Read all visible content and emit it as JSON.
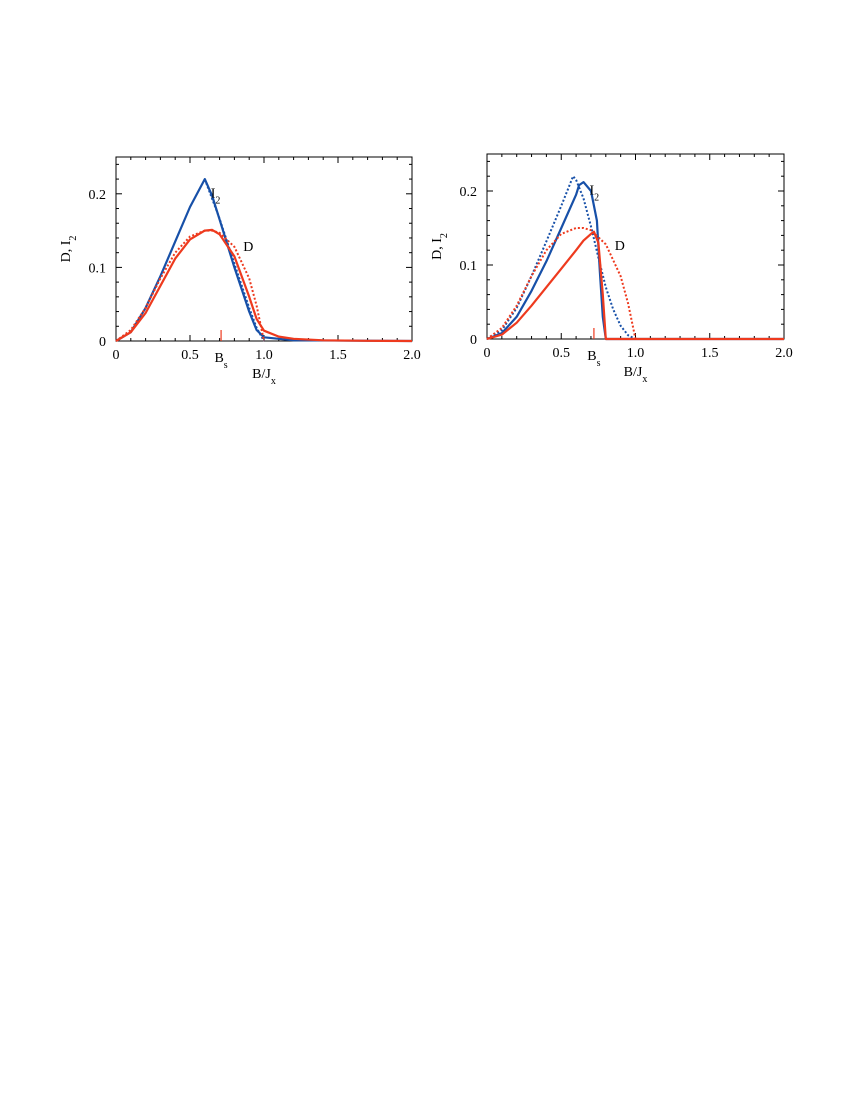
{
  "colors": {
    "D": "#ee3a1e",
    "I2": "#1750a8"
  },
  "chart_data": [
    {
      "type": "line",
      "xlabel": "B/J",
      "xlabel_sub": "x",
      "ylabel": "D, I",
      "ylabel_sub": "2",
      "xlim": [
        0,
        2.0
      ],
      "ylim": [
        0,
        0.25
      ],
      "x_ticks": [
        "0",
        "0.5",
        "1.0",
        "1.5",
        "2.0"
      ],
      "y_ticks": [
        "0",
        "0.1",
        "0.2"
      ],
      "marker": {
        "label": "B",
        "label_sub": "s",
        "x": 0.71
      },
      "series": [
        {
          "label": "I2",
          "style": "solid",
          "color_key": "I2",
          "x": [
            0,
            0.1,
            0.2,
            0.3,
            0.4,
            0.5,
            0.6,
            0.65,
            0.7,
            0.8,
            0.9,
            0.95,
            1.0,
            1.2,
            2.0
          ],
          "y": [
            0,
            0.012,
            0.045,
            0.088,
            0.135,
            0.182,
            0.22,
            0.197,
            0.165,
            0.1,
            0.04,
            0.015,
            0.005,
            0.001,
            0
          ]
        },
        {
          "label": "I2 (dotted)",
          "style": "dotted",
          "color_key": "I2",
          "x": [
            0.6,
            0.7,
            0.8,
            0.9,
            0.95,
            1.0
          ],
          "y": [
            0.22,
            0.166,
            0.105,
            0.045,
            0.018,
            0
          ]
        },
        {
          "label": "D",
          "style": "solid",
          "color_key": "D",
          "x": [
            0,
            0.1,
            0.2,
            0.3,
            0.4,
            0.5,
            0.6,
            0.65,
            0.7,
            0.8,
            0.9,
            0.95,
            1.0,
            1.1,
            1.2,
            1.4,
            1.7,
            2.0
          ],
          "y": [
            0,
            0.012,
            0.038,
            0.075,
            0.112,
            0.138,
            0.15,
            0.151,
            0.145,
            0.115,
            0.06,
            0.03,
            0.014,
            0.006,
            0.003,
            0.001,
            0.0003,
            0
          ]
        },
        {
          "label": "D (dotted)",
          "style": "dotted",
          "color_key": "D",
          "x": [
            0,
            0.1,
            0.2,
            0.3,
            0.4,
            0.5,
            0.6,
            0.65,
            0.7,
            0.8,
            0.9,
            0.95,
            1.0
          ],
          "y": [
            0,
            0.015,
            0.045,
            0.085,
            0.12,
            0.142,
            0.15,
            0.15,
            0.147,
            0.128,
            0.085,
            0.048,
            0
          ]
        }
      ],
      "labels": [
        {
          "text": "I",
          "sub": "2",
          "x": 0.64,
          "y": 0.195
        },
        {
          "text": "D",
          "sub": "",
          "x": 0.86,
          "y": 0.122
        }
      ]
    },
    {
      "type": "line",
      "xlabel": "B/J",
      "xlabel_sub": "x",
      "ylabel": "D, I",
      "ylabel_sub": "2",
      "xlim": [
        0,
        2.0
      ],
      "ylim": [
        0,
        0.25
      ],
      "x_ticks": [
        "0",
        "0.5",
        "1.0",
        "1.5",
        "2.0"
      ],
      "y_ticks": [
        "0",
        "0.1",
        "0.2"
      ],
      "marker": {
        "label": "B",
        "label_sub": "s",
        "x": 0.72
      },
      "series": [
        {
          "label": "I2",
          "style": "solid",
          "color_key": "I2",
          "x": [
            0,
            0.1,
            0.2,
            0.3,
            0.4,
            0.5,
            0.6,
            0.62,
            0.65,
            0.7,
            0.74,
            0.76,
            0.78,
            0.8,
            1.0,
            2.0
          ],
          "y": [
            0,
            0.008,
            0.03,
            0.065,
            0.105,
            0.15,
            0.195,
            0.208,
            0.212,
            0.2,
            0.16,
            0.09,
            0.03,
            0,
            0,
            0
          ]
        },
        {
          "label": "I2 (dotted)",
          "style": "dotted",
          "color_key": "I2",
          "x": [
            0,
            0.1,
            0.2,
            0.3,
            0.4,
            0.5,
            0.55,
            0.58,
            0.6,
            0.65,
            0.7,
            0.75,
            0.8,
            0.85,
            0.9,
            0.95,
            1.0
          ],
          "y": [
            0,
            0.012,
            0.042,
            0.085,
            0.132,
            0.18,
            0.205,
            0.22,
            0.215,
            0.19,
            0.152,
            0.11,
            0.07,
            0.04,
            0.018,
            0.005,
            0
          ]
        },
        {
          "label": "D",
          "style": "solid",
          "color_key": "D",
          "x": [
            0,
            0.1,
            0.2,
            0.3,
            0.4,
            0.5,
            0.6,
            0.65,
            0.7,
            0.72,
            0.75,
            0.78,
            0.8,
            1.0,
            2.0
          ],
          "y": [
            0,
            0.006,
            0.022,
            0.045,
            0.07,
            0.095,
            0.12,
            0.133,
            0.142,
            0.145,
            0.13,
            0.06,
            0,
            0,
            0
          ]
        },
        {
          "label": "D (dotted)",
          "style": "dotted",
          "color_key": "D",
          "x": [
            0,
            0.1,
            0.2,
            0.3,
            0.4,
            0.5,
            0.6,
            0.65,
            0.7,
            0.8,
            0.9,
            0.95,
            1.0
          ],
          "y": [
            0,
            0.015,
            0.045,
            0.085,
            0.12,
            0.142,
            0.15,
            0.15,
            0.147,
            0.128,
            0.085,
            0.048,
            0
          ]
        }
      ],
      "labels": [
        {
          "text": "I",
          "sub": "2",
          "x": 0.69,
          "y": 0.195
        },
        {
          "text": "D",
          "sub": "",
          "x": 0.86,
          "y": 0.12
        }
      ]
    }
  ]
}
